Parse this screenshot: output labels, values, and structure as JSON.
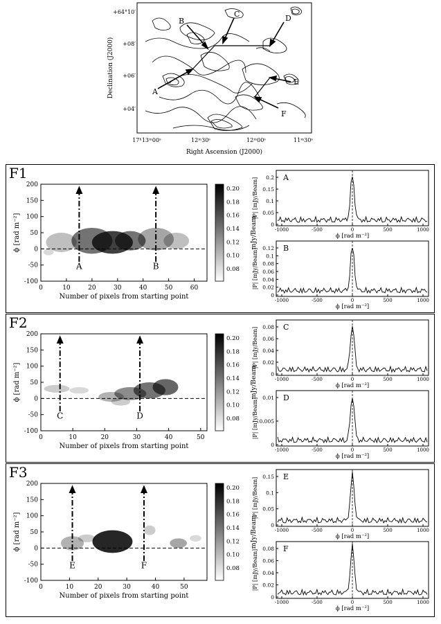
{
  "map": {
    "xlabel": "Right Ascension (J2000)",
    "ylabel": "Declination (J2000)",
    "xticks": [
      "17ʰ13ᵐ00ˢ",
      "12ᵐ30ˢ",
      "12ᵐ00ˢ",
      "11ᵐ30ˢ"
    ],
    "yticks": [
      "+64°10′",
      "+08′",
      "+06′",
      "+04′"
    ],
    "arrow_labels": [
      "A",
      "B",
      "C",
      "D",
      "E",
      "F"
    ]
  },
  "colorbar_unit": "mJy/Beam",
  "phi_axis_label": "ϕ [rad m⁻²]",
  "pixel_axis_label": "Number of pixels from starting point",
  "spectrum_xlabel": "ϕ [rad m⁻²]",
  "spectrum_ylabel": "|P| [mJy/Beam]",
  "panels": [
    {
      "id": "F1",
      "markers": [
        {
          "label": "A",
          "x": 15
        },
        {
          "label": "B",
          "x": 45
        }
      ],
      "image_xticks": [
        "0",
        "10",
        "20",
        "30",
        "40",
        "50",
        "60"
      ],
      "colorbar_ticks": [
        "0.20",
        "0.18",
        "0.16",
        "0.14",
        "0.12",
        "0.10",
        "0.08"
      ],
      "spectra": [
        {
          "label": "A",
          "yticks": [
            "0.2",
            "0.15",
            "0.1",
            "0.05",
            "0"
          ]
        },
        {
          "label": "B",
          "yticks": [
            "0.12",
            "0.1",
            "0.08",
            "0.06",
            "0.04",
            "0.02",
            "0"
          ]
        }
      ]
    },
    {
      "id": "F2",
      "markers": [
        {
          "label": "C",
          "x": 6
        },
        {
          "label": "D",
          "x": 31
        }
      ],
      "image_xticks": [
        "0",
        "10",
        "20",
        "30",
        "40",
        "50"
      ],
      "colorbar_ticks": [
        "0.20",
        "0.18",
        "0.16",
        "0.14",
        "0.12",
        "0.10",
        "0.08"
      ],
      "spectra": [
        {
          "label": "C",
          "yticks": [
            "0.08",
            "0.06",
            "0.04",
            "0.02",
            "0"
          ]
        },
        {
          "label": "D",
          "yticks": [
            "0.01",
            "0.005",
            "0"
          ]
        }
      ]
    },
    {
      "id": "F3",
      "markers": [
        {
          "label": "E",
          "x": 11
        },
        {
          "label": "F",
          "x": 36
        }
      ],
      "image_xticks": [
        "0",
        "10",
        "20",
        "30",
        "40",
        "50"
      ],
      "colorbar_ticks": [
        "0.20",
        "0.18",
        "0.16",
        "0.14",
        "0.12",
        "0.10",
        "0.08"
      ],
      "spectra": [
        {
          "label": "E",
          "yticks": [
            "0.15",
            "0.1",
            "0.05",
            "0"
          ]
        },
        {
          "label": "F",
          "yticks": [
            "0.08",
            "0.06",
            "0.04",
            "0.02",
            "0"
          ]
        }
      ]
    }
  ],
  "image_yticks": [
    "200",
    "150",
    "100",
    "50",
    "0",
    "-50",
    "-100"
  ],
  "spectrum_xticks": [
    "-1000",
    "-500",
    "0",
    "500",
    "1000"
  ]
}
